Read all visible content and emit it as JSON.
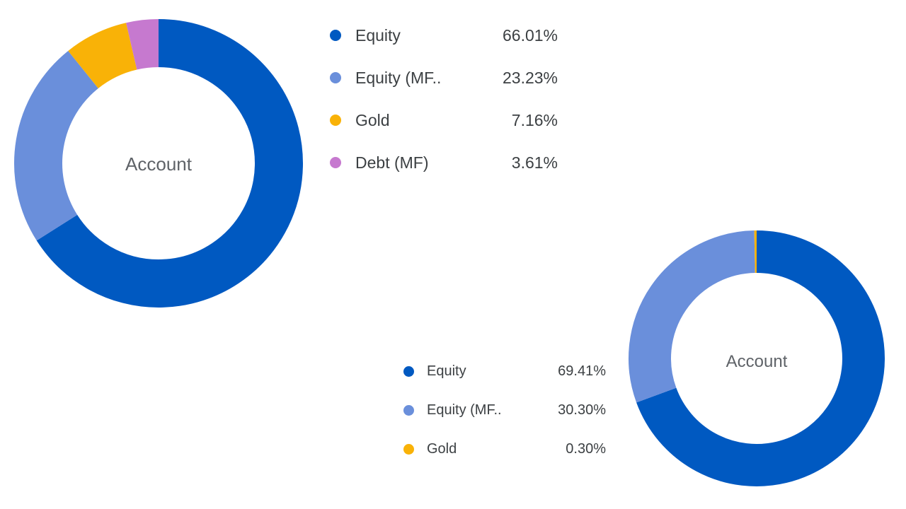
{
  "chart_data": [
    {
      "type": "pie",
      "variant": "donut",
      "center_label": "Account",
      "legend_placement": "right",
      "categories": [
        "Equity",
        "Equity (MF..",
        "Gold",
        "Debt (MF)"
      ],
      "values": [
        66.01,
        23.23,
        7.16,
        3.61
      ],
      "value_labels": [
        "66.01%",
        "23.23%",
        "7.16%",
        "3.61%"
      ],
      "colors": [
        "#0059c1",
        "#6a8fdb",
        "#f9b207",
        "#c679cf"
      ]
    },
    {
      "type": "pie",
      "variant": "donut",
      "center_label": "Account",
      "legend_placement": "left",
      "categories": [
        "Equity",
        "Equity (MF..",
        "Gold"
      ],
      "values": [
        69.41,
        30.3,
        0.3
      ],
      "value_labels": [
        "69.41%",
        "30.30%",
        "0.30%"
      ],
      "colors": [
        "#0059c1",
        "#6a8fdb",
        "#f9b207"
      ]
    }
  ]
}
